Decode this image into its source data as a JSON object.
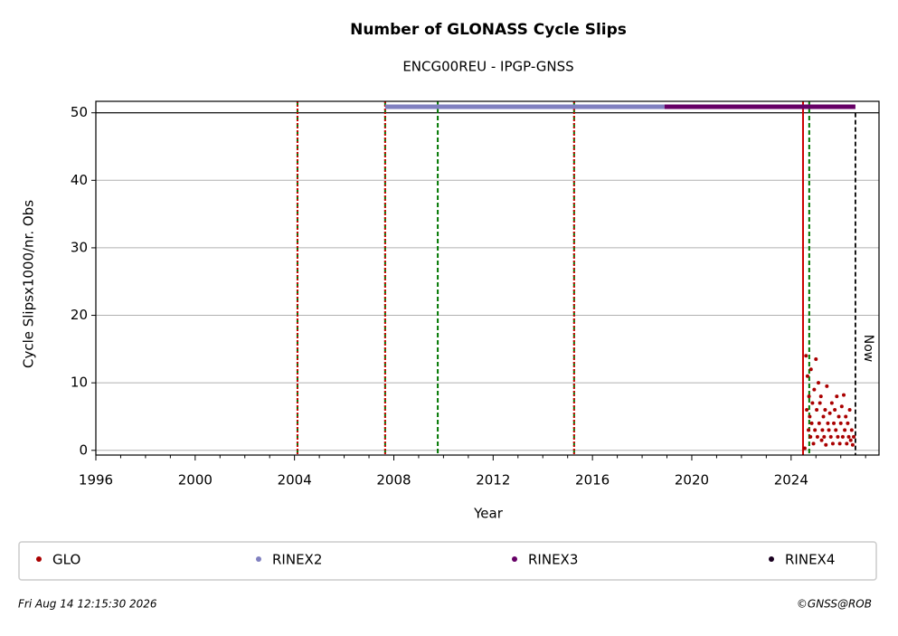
{
  "chart_data": {
    "type": "scatter",
    "title": "Number of GLONASS Cycle Slips",
    "subtitle": "ENCG00REU - IPGP-GNSS",
    "x_label": "Year",
    "y_label": "Cycle Slipsx1000/nr. Obs",
    "xlim": [
      1996,
      2027.54
    ],
    "ylim": [
      -0.7,
      51.7
    ],
    "xticks": [
      1996,
      2000,
      2004,
      2008,
      2012,
      2016,
      2020,
      2024
    ],
    "xminorticks": [
      1997,
      1998,
      1999,
      2001,
      2002,
      2003,
      2005,
      2006,
      2007,
      2009,
      2010,
      2011,
      2013,
      2014,
      2015,
      2017,
      2018,
      2019,
      2021,
      2022,
      2023,
      2025,
      2026,
      2027
    ],
    "yticks": [
      0,
      10,
      20,
      30,
      40,
      50
    ],
    "grid": true,
    "reference_y": 50,
    "series": [
      {
        "name": "GLO",
        "color": "#aa0000",
        "style": "points",
        "x": [
          2024.55,
          2024.6,
          2024.63,
          2024.66,
          2024.7,
          2024.72,
          2024.75,
          2024.78,
          2024.8,
          2024.83,
          2024.86,
          2024.9,
          2024.93,
          2024.96,
          2025.0,
          2025.03,
          2025.06,
          2025.1,
          2025.13,
          2025.16,
          2025.2,
          2025.23,
          2025.26,
          2025.3,
          2025.33,
          2025.37,
          2025.4,
          2025.44,
          2025.48,
          2025.52,
          2025.56,
          2025.6,
          2025.64,
          2025.68,
          2025.72,
          2025.76,
          2025.8,
          2025.84,
          2025.88,
          2025.92,
          2025.96,
          2026.0,
          2026.04,
          2026.08,
          2026.12,
          2026.16,
          2026.2,
          2026.24,
          2026.28,
          2026.32,
          2026.36,
          2026.4,
          2026.44,
          2026.48,
          2026.52
        ],
        "values": [
          0.3,
          14,
          6,
          11,
          3,
          8,
          5,
          2,
          12,
          4,
          7,
          1,
          9,
          3,
          13.5,
          6,
          2,
          10,
          4,
          7,
          8,
          1.5,
          3,
          5,
          2,
          6,
          0.8,
          9.5,
          4,
          3,
          5.5,
          2,
          7,
          1,
          4,
          6,
          3,
          8,
          2,
          5,
          1,
          4,
          6.5,
          2,
          8.2,
          3,
          5,
          1,
          4,
          2,
          6,
          1.5,
          3,
          0.8,
          2
        ]
      },
      {
        "name": "RINEX2",
        "color": "#8080c0",
        "style": "band",
        "x": [
          2007.65,
          2018.9
        ],
        "values": [
          50.9,
          50.9
        ]
      },
      {
        "name": "RINEX3",
        "color": "#660066",
        "style": "band",
        "x": [
          2018.9,
          2026.59
        ],
        "values": [
          50.9,
          50.9
        ]
      },
      {
        "name": "RINEX4",
        "color": "#1a0020",
        "style": "band",
        "x": [],
        "values": []
      }
    ],
    "events": [
      {
        "x": 2004.12,
        "color": "#007700",
        "style": "dashed"
      },
      {
        "x": 2004.12,
        "color": "#cc0000",
        "style": "dotted"
      },
      {
        "x": 2007.65,
        "color": "#007700",
        "style": "dashed"
      },
      {
        "x": 2007.65,
        "color": "#cc0000",
        "style": "dotted"
      },
      {
        "x": 2009.77,
        "color": "#007700",
        "style": "dashed"
      },
      {
        "x": 2015.26,
        "color": "#007700",
        "style": "dashed"
      },
      {
        "x": 2015.26,
        "color": "#cc0000",
        "style": "dotted"
      },
      {
        "x": 2024.48,
        "color": "#cc0000",
        "style": "solid"
      },
      {
        "x": 2024.73,
        "color": "#007700",
        "style": "dashed"
      }
    ],
    "now": {
      "x": 2026.59,
      "label": "Now"
    },
    "footer_left": "Fri Aug 14 12:15:30 2026",
    "footer_right": "©GNSS@ROB"
  }
}
